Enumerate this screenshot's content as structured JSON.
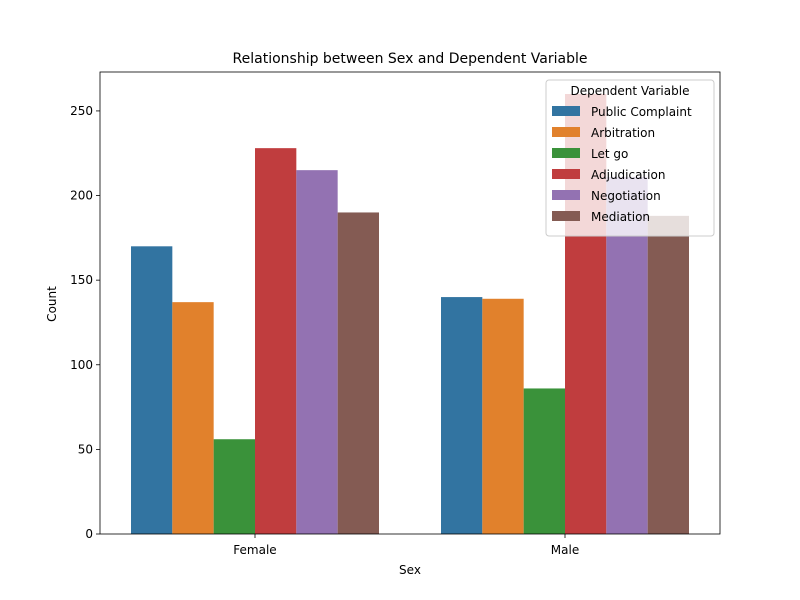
{
  "chart_data": {
    "type": "bar",
    "title": "Relationship between Sex and Dependent Variable",
    "xlabel": "Sex",
    "ylabel": "Count",
    "categories": [
      "Female",
      "Male"
    ],
    "series": [
      {
        "name": "Public Complaint",
        "values": [
          170,
          140
        ],
        "color": "#3274a1"
      },
      {
        "name": "Arbitration",
        "values": [
          137,
          139
        ],
        "color": "#e1812c"
      },
      {
        "name": "Let go",
        "values": [
          56,
          86
        ],
        "color": "#3a923a"
      },
      {
        "name": "Adjudication",
        "values": [
          228,
          260
        ],
        "color": "#c03d3e"
      },
      {
        "name": "Negotiation",
        "values": [
          215,
          211
        ],
        "color": "#9372b2"
      },
      {
        "name": "Mediation",
        "values": [
          190,
          188
        ],
        "color": "#845b53"
      }
    ],
    "ylim": [
      0,
      273
    ],
    "yticks": [
      0,
      50,
      100,
      150,
      200,
      250
    ],
    "grid": false,
    "legend": {
      "title": "Dependent Variable",
      "position": "top-right"
    }
  }
}
